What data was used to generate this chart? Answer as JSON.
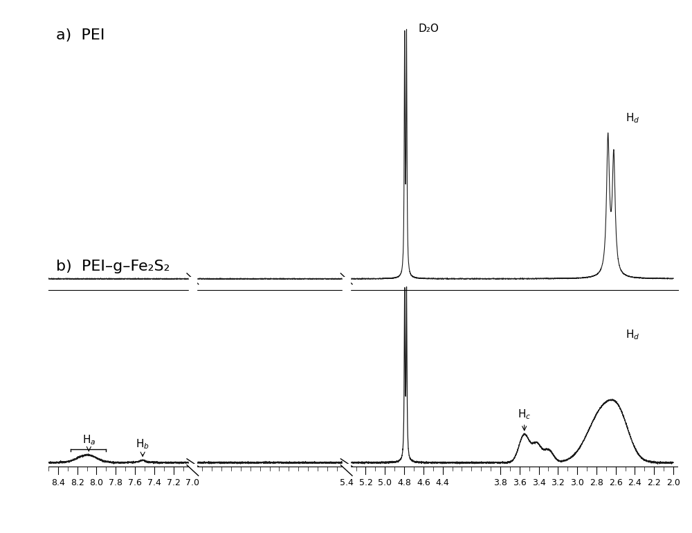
{
  "background_color": "#ffffff",
  "line_color": "#1a1a1a",
  "tick_labels": [
    8.4,
    8.2,
    8.0,
    7.8,
    7.6,
    7.4,
    7.2,
    7.0,
    5.4,
    5.2,
    5.0,
    4.8,
    4.6,
    4.4,
    3.8,
    3.6,
    3.4,
    3.2,
    3.0,
    2.8,
    2.6,
    2.4,
    2.2,
    2.0
  ],
  "xmin": 2.0,
  "xmax": 8.5,
  "label_a": "a)  PEI",
  "label_b": "b)  PEI–g–Fe₂S₂",
  "D2O_label": "D₂O",
  "Hd_label": "H$_d$",
  "Hc_label": "H$_c$",
  "Ha_label": "H$_a$",
  "Hb_label": "H$_b$"
}
